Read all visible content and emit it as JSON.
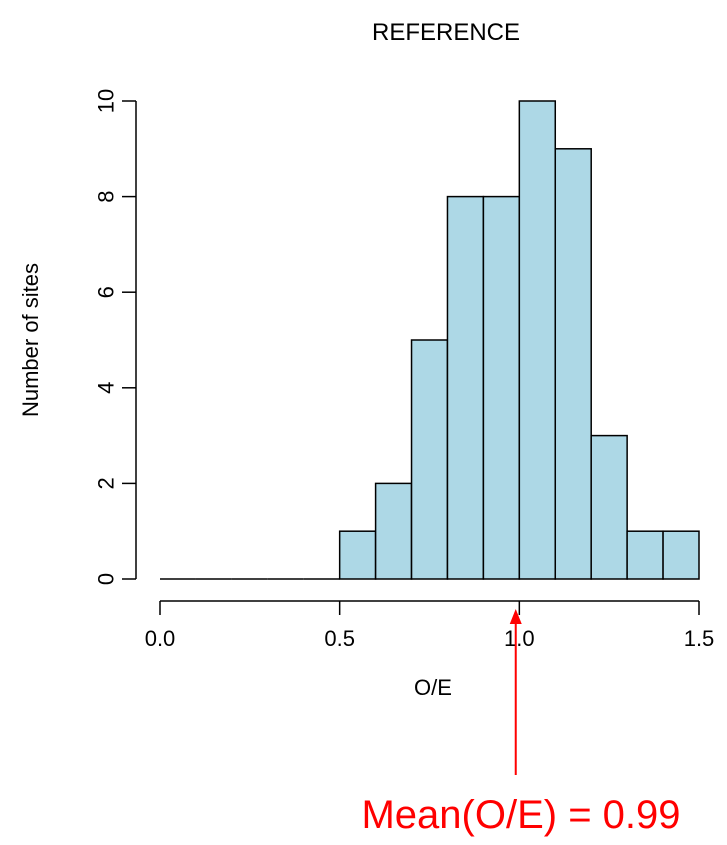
{
  "chart_data": {
    "type": "bar",
    "title": "REFERENCE",
    "xlabel": "O/E",
    "ylabel": "Number of sites",
    "bins": [
      {
        "from": 0.0,
        "to": 0.1,
        "count": 0
      },
      {
        "from": 0.1,
        "to": 0.2,
        "count": 0
      },
      {
        "from": 0.2,
        "to": 0.3,
        "count": 0
      },
      {
        "from": 0.3,
        "to": 0.4,
        "count": 0
      },
      {
        "from": 0.4,
        "to": 0.5,
        "count": 0
      },
      {
        "from": 0.5,
        "to": 0.6,
        "count": 1
      },
      {
        "from": 0.6,
        "to": 0.7,
        "count": 2
      },
      {
        "from": 0.7,
        "to": 0.8,
        "count": 5
      },
      {
        "from": 0.8,
        "to": 0.9,
        "count": 8
      },
      {
        "from": 0.9,
        "to": 1.0,
        "count": 8
      },
      {
        "from": 1.0,
        "to": 1.1,
        "count": 10
      },
      {
        "from": 1.1,
        "to": 1.2,
        "count": 9
      },
      {
        "from": 1.2,
        "to": 1.3,
        "count": 3
      },
      {
        "from": 1.3,
        "to": 1.4,
        "count": 1
      },
      {
        "from": 1.4,
        "to": 1.5,
        "count": 1
      }
    ],
    "xlim": [
      0.0,
      1.5
    ],
    "ylim": [
      0,
      10
    ],
    "xticks": [
      0.0,
      0.5,
      1.0,
      1.5
    ],
    "xtick_labels": [
      "0.0",
      "0.5",
      "1.0",
      "1.5"
    ],
    "yticks": [
      0,
      2,
      4,
      6,
      8,
      10
    ],
    "ytick_labels": [
      "0",
      "2",
      "4",
      "6",
      "8",
      "10"
    ],
    "grid": false,
    "bar_color": "#add8e6",
    "annotation": {
      "text": "Mean(O/E) = 0.99",
      "x": 0.99,
      "color": "#ff0000"
    }
  }
}
